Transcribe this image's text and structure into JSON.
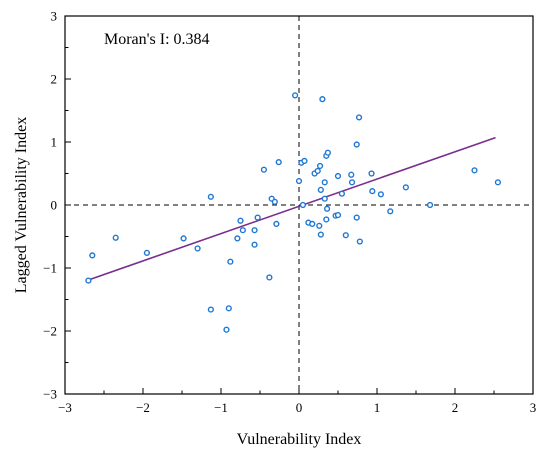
{
  "chart_data": {
    "type": "scatter",
    "annotation": "Moran's I: 0.384",
    "xlabel": "Vulnerability Index",
    "ylabel": "Lagged Vulnerability Index",
    "xlim": [
      -3,
      3
    ],
    "ylim": [
      -3,
      3
    ],
    "xticks": [
      -3,
      -2,
      -1,
      0,
      1,
      2,
      3
    ],
    "yticks": [
      -3,
      -2,
      -1,
      0,
      1,
      2,
      3
    ],
    "xtick_labels": [
      "−3",
      "−2",
      "−1",
      "0",
      "1",
      "2",
      "3"
    ],
    "ytick_labels": [
      "−3",
      "−2",
      "−1",
      "0",
      "1",
      "2",
      "3"
    ],
    "reference_lines": {
      "x": 0,
      "y": 0,
      "style": "dashed"
    },
    "point_color": "#1f77d4",
    "line_color": "#7b2d8e",
    "regression_line": {
      "x": [
        -2.7,
        2.52
      ],
      "y": [
        -1.19,
        1.07
      ]
    },
    "points": [
      {
        "x": -2.7,
        "y": -1.2
      },
      {
        "x": -2.65,
        "y": -0.8
      },
      {
        "x": -2.35,
        "y": -0.52
      },
      {
        "x": -1.95,
        "y": -0.76
      },
      {
        "x": -1.48,
        "y": -0.53
      },
      {
        "x": -1.3,
        "y": -0.69
      },
      {
        "x": -1.13,
        "y": 0.13
      },
      {
        "x": -1.13,
        "y": -1.66
      },
      {
        "x": -0.93,
        "y": -1.98
      },
      {
        "x": -0.9,
        "y": -1.64
      },
      {
        "x": -0.88,
        "y": -0.9
      },
      {
        "x": -0.79,
        "y": -0.53
      },
      {
        "x": -0.75,
        "y": -0.25
      },
      {
        "x": -0.72,
        "y": -0.4
      },
      {
        "x": -0.57,
        "y": -0.63
      },
      {
        "x": -0.57,
        "y": -0.4
      },
      {
        "x": -0.53,
        "y": -0.2
      },
      {
        "x": -0.45,
        "y": 0.56
      },
      {
        "x": -0.38,
        "y": -1.15
      },
      {
        "x": -0.35,
        "y": 0.1
      },
      {
        "x": -0.31,
        "y": 0.05
      },
      {
        "x": -0.29,
        "y": -0.3
      },
      {
        "x": -0.26,
        "y": 0.68
      },
      {
        "x": -0.05,
        "y": 1.74
      },
      {
        "x": 0.0,
        "y": 0.38
      },
      {
        "x": 0.03,
        "y": 0.67
      },
      {
        "x": 0.07,
        "y": 0.7
      },
      {
        "x": 0.05,
        "y": 0.0
      },
      {
        "x": 0.12,
        "y": -0.28
      },
      {
        "x": 0.17,
        "y": -0.3
      },
      {
        "x": 0.2,
        "y": 0.5
      },
      {
        "x": 0.24,
        "y": 0.54
      },
      {
        "x": 0.26,
        "y": -0.33
      },
      {
        "x": 0.28,
        "y": -0.47
      },
      {
        "x": 0.28,
        "y": 0.24
      },
      {
        "x": 0.27,
        "y": 0.62
      },
      {
        "x": 0.3,
        "y": 1.68
      },
      {
        "x": 0.33,
        "y": 0.36
      },
      {
        "x": 0.33,
        "y": 0.1
      },
      {
        "x": 0.35,
        "y": 0.78
      },
      {
        "x": 0.37,
        "y": 0.83
      },
      {
        "x": 0.36,
        "y": -0.06
      },
      {
        "x": 0.35,
        "y": -0.23
      },
      {
        "x": 0.47,
        "y": -0.17
      },
      {
        "x": 0.5,
        "y": -0.16
      },
      {
        "x": 0.5,
        "y": 0.46
      },
      {
        "x": 0.55,
        "y": 0.18
      },
      {
        "x": 0.6,
        "y": -0.48
      },
      {
        "x": 0.67,
        "y": 0.48
      },
      {
        "x": 0.68,
        "y": 0.36
      },
      {
        "x": 0.74,
        "y": -0.2
      },
      {
        "x": 0.74,
        "y": 0.96
      },
      {
        "x": 0.77,
        "y": 1.39
      },
      {
        "x": 0.78,
        "y": -0.58
      },
      {
        "x": 0.93,
        "y": 0.5
      },
      {
        "x": 0.94,
        "y": 0.22
      },
      {
        "x": 1.05,
        "y": 0.17
      },
      {
        "x": 1.17,
        "y": -0.1
      },
      {
        "x": 1.37,
        "y": 0.28
      },
      {
        "x": 1.68,
        "y": 0.0
      },
      {
        "x": 2.25,
        "y": 0.55
      },
      {
        "x": 2.55,
        "y": 0.36
      }
    ]
  }
}
